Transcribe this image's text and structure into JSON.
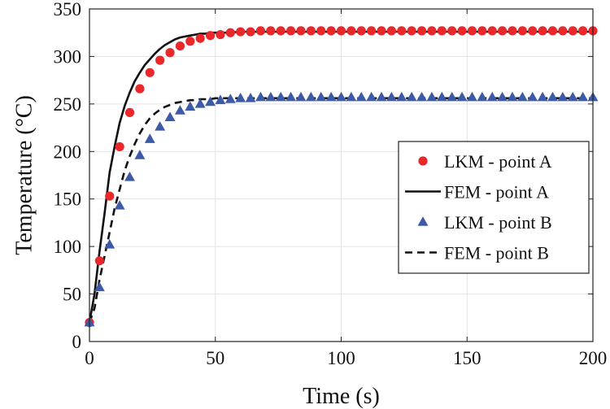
{
  "chart_data": {
    "type": "line",
    "title": "",
    "xlabel": "Time (s)",
    "ylabel": "Temperature (°C)",
    "xlim": [
      0,
      200
    ],
    "ylim": [
      0,
      350
    ],
    "xticks": [
      "0",
      "50",
      "100",
      "150",
      "200"
    ],
    "yticks": [
      "0",
      "50",
      "100",
      "150",
      "200",
      "250",
      "300",
      "350"
    ],
    "grid": true,
    "legend_position": "right-middle",
    "colors": {
      "red": "#e8282b",
      "blue": "#3c5aa8",
      "black": "#111111"
    },
    "series": [
      {
        "name": "LKM - point A",
        "style": "red-circle-markers",
        "x": [
          0,
          4,
          8,
          12,
          16,
          20,
          24,
          28,
          32,
          36,
          40,
          44,
          48,
          52,
          56,
          60,
          64,
          68,
          72,
          76,
          80,
          84,
          88,
          92,
          96,
          100,
          104,
          108,
          112,
          116,
          120,
          124,
          128,
          132,
          136,
          140,
          144,
          148,
          152,
          156,
          160,
          164,
          168,
          172,
          176,
          180,
          184,
          188,
          192,
          196,
          200
        ],
        "y": [
          20,
          85,
          153,
          205,
          241,
          266,
          283,
          296,
          304,
          311,
          316,
          319,
          322,
          323,
          325,
          326,
          326,
          327,
          327,
          327,
          327,
          327,
          327,
          327,
          327,
          327,
          327,
          327,
          327,
          327,
          327,
          327,
          327,
          327,
          327,
          327,
          327,
          327,
          327,
          327,
          327,
          327,
          327,
          327,
          327,
          327,
          327,
          327,
          327,
          327,
          327
        ]
      },
      {
        "name": "FEM - point A",
        "style": "black-solid-line",
        "x": [
          0,
          2,
          4,
          6,
          8,
          10,
          12,
          14,
          16,
          18,
          20,
          22,
          24,
          26,
          28,
          30,
          32,
          34,
          36,
          38,
          40,
          42,
          44,
          46,
          48,
          50,
          55,
          60,
          70,
          80,
          100,
          120,
          140,
          160,
          180,
          200
        ],
        "y": [
          20,
          50,
          95,
          135,
          178,
          205,
          230,
          248,
          262,
          274,
          283,
          291,
          297,
          303,
          308,
          312,
          315,
          318,
          320,
          321,
          322,
          323,
          324,
          324,
          325,
          325,
          325,
          326,
          326,
          326,
          326,
          326,
          326,
          326,
          326,
          326
        ]
      },
      {
        "name": "LKM - point B",
        "style": "blue-triangle-markers",
        "x": [
          0,
          4,
          8,
          12,
          16,
          20,
          24,
          28,
          32,
          36,
          40,
          44,
          48,
          52,
          56,
          60,
          64,
          68,
          72,
          76,
          80,
          84,
          88,
          92,
          96,
          100,
          104,
          108,
          112,
          116,
          120,
          124,
          128,
          132,
          136,
          140,
          144,
          148,
          152,
          156,
          160,
          164,
          168,
          172,
          176,
          180,
          184,
          188,
          192,
          196,
          200
        ],
        "y": [
          20,
          57,
          102,
          143,
          173,
          196,
          213,
          226,
          236,
          243,
          247,
          250,
          252,
          254,
          255,
          256,
          256,
          257,
          257,
          257,
          257,
          257,
          257,
          257,
          257,
          257,
          257,
          257,
          257,
          257,
          257,
          257,
          257,
          257,
          257,
          257,
          257,
          257,
          257,
          257,
          257,
          257,
          257,
          257,
          257,
          257,
          257,
          257,
          257,
          257,
          257
        ]
      },
      {
        "name": "FEM - point B",
        "style": "black-dashed-line",
        "x": [
          0,
          2,
          4,
          6,
          8,
          10,
          12,
          14,
          16,
          18,
          20,
          22,
          24,
          26,
          28,
          30,
          32,
          34,
          36,
          38,
          40,
          42,
          44,
          46,
          48,
          50,
          55,
          60,
          70,
          80,
          100,
          120,
          140,
          160,
          180,
          200
        ],
        "y": [
          20,
          35,
          65,
          90,
          115,
          140,
          160,
          180,
          195,
          208,
          219,
          228,
          235,
          240,
          244,
          247,
          249,
          251,
          252,
          253,
          254,
          254,
          255,
          255,
          255,
          256,
          256,
          256,
          256,
          256,
          256,
          256,
          256,
          256,
          256,
          256
        ]
      }
    ]
  }
}
